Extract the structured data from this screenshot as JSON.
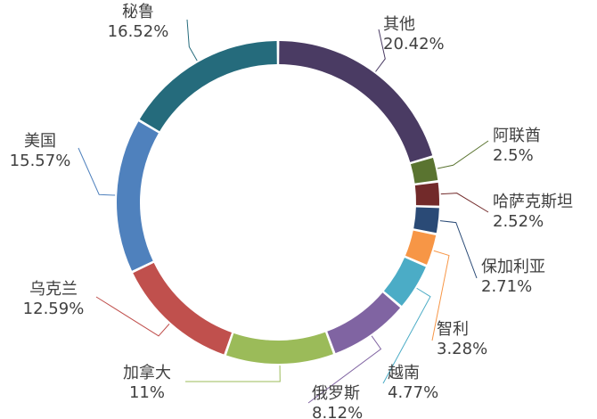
{
  "chart_data": {
    "type": "pie",
    "donut": true,
    "title": "",
    "legend": "none",
    "data_labels": "outside-with-leaders",
    "slices": [
      {
        "name": "其他",
        "value": 20.42,
        "label": "20.42%",
        "color": "#4a3b63"
      },
      {
        "name": "阿联酋",
        "value": 2.5,
        "label": "2.5%",
        "color": "#5a7430"
      },
      {
        "name": "哈萨克斯坦",
        "value": 2.52,
        "label": "2.52%",
        "color": "#722a2a"
      },
      {
        "name": "保加利亚",
        "value": 2.71,
        "label": "2.71%",
        "color": "#2a4a76"
      },
      {
        "name": "智利",
        "value": 3.28,
        "label": "3.28%",
        "color": "#f79646"
      },
      {
        "name": "越南",
        "value": 4.77,
        "label": "4.77%",
        "color": "#4bacc6"
      },
      {
        "name": "俄罗斯",
        "value": 8.12,
        "label": "8.12%",
        "color": "#8064a2"
      },
      {
        "name": "加拿大",
        "value": 11,
        "label": "11%",
        "color": "#9bbb59"
      },
      {
        "name": "乌克兰",
        "value": 12.59,
        "label": "12.59%",
        "color": "#c0504d"
      },
      {
        "name": "美国",
        "value": 15.57,
        "label": "15.57%",
        "color": "#4f81bd"
      },
      {
        "name": "秘鲁",
        "value": 16.52,
        "label": "16.52%",
        "color": "#256b7c"
      }
    ]
  }
}
